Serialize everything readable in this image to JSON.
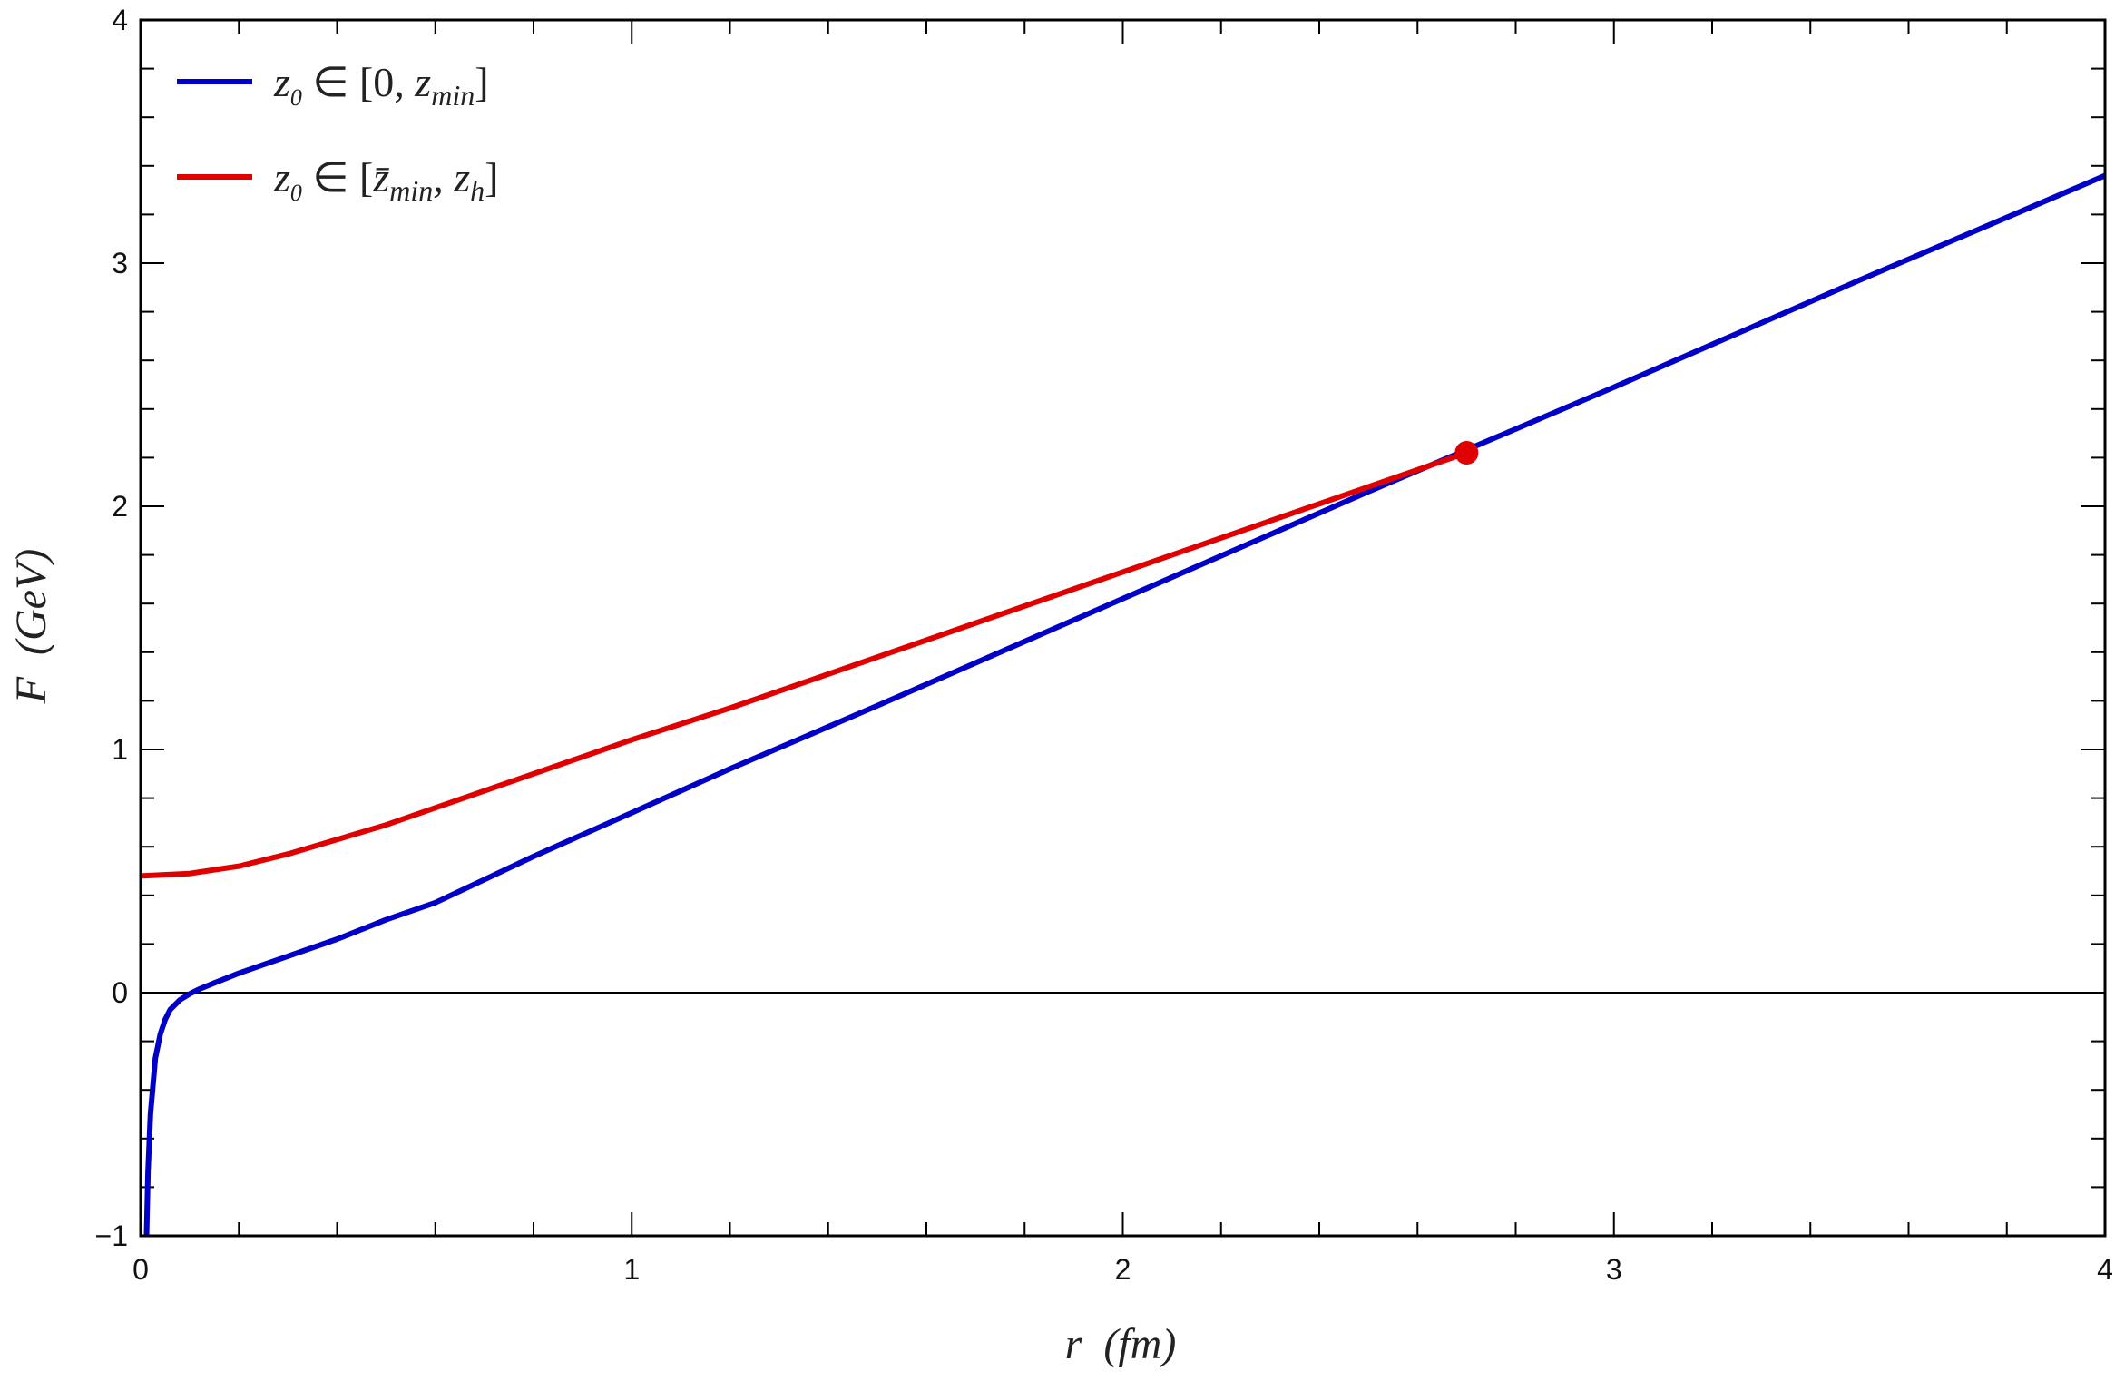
{
  "chart_data": {
    "type": "line",
    "title": "",
    "xlabel": "r  (fm)",
    "ylabel": "F  (GeV)",
    "xlim": [
      0,
      4
    ],
    "ylim": [
      -1,
      4
    ],
    "x_ticks": [
      "0",
      "1",
      "2",
      "3",
      "4"
    ],
    "y_ticks": [
      "−1",
      "0",
      "1",
      "2",
      "3",
      "4"
    ],
    "grid": false,
    "legend_position": "top-left",
    "reference_line": {
      "y": 0
    },
    "series": [
      {
        "name": "z₀ ∈ [0, z_min]",
        "color": "#0000c8",
        "x": [
          0.012,
          0.015,
          0.02,
          0.03,
          0.04,
          0.05,
          0.06,
          0.08,
          0.1,
          0.12,
          0.15,
          0.2,
          0.25,
          0.3,
          0.4,
          0.5,
          0.6,
          0.8,
          1.0,
          1.2,
          1.5,
          2.0,
          2.5,
          3.0,
          3.5,
          4.0
        ],
        "y": [
          -1.0,
          -0.74,
          -0.5,
          -0.27,
          -0.17,
          -0.11,
          -0.07,
          -0.03,
          -0.005,
          0.015,
          0.04,
          0.08,
          0.115,
          0.15,
          0.22,
          0.3,
          0.37,
          0.56,
          0.74,
          0.92,
          1.18,
          1.62,
          2.06,
          2.49,
          2.93,
          3.36
        ]
      },
      {
        "name": "z₀ ∈ [z̄_min, z_h]",
        "color": "#e00000",
        "x": [
          0.0,
          0.1,
          0.2,
          0.3,
          0.4,
          0.5,
          0.6,
          0.8,
          1.0,
          1.2,
          1.5,
          2.0,
          2.5,
          2.7
        ],
        "y": [
          0.48,
          0.49,
          0.52,
          0.57,
          0.63,
          0.69,
          0.76,
          0.9,
          1.04,
          1.17,
          1.38,
          1.73,
          2.08,
          2.22
        ],
        "endpoint": {
          "x": 2.7,
          "y": 2.22
        }
      }
    ]
  },
  "legend": {
    "items": [
      {
        "prefix": "z",
        "sub0": "0",
        "rel": " ∈ [0, ",
        "var": "z",
        "sub": "min",
        "close": "]"
      },
      {
        "prefix": "z",
        "sub0": "0",
        "rel": " ∈ [",
        "var": "z̄",
        "sub": "min",
        "mid": ", z",
        "sub2": "h",
        "close": "]"
      }
    ]
  }
}
